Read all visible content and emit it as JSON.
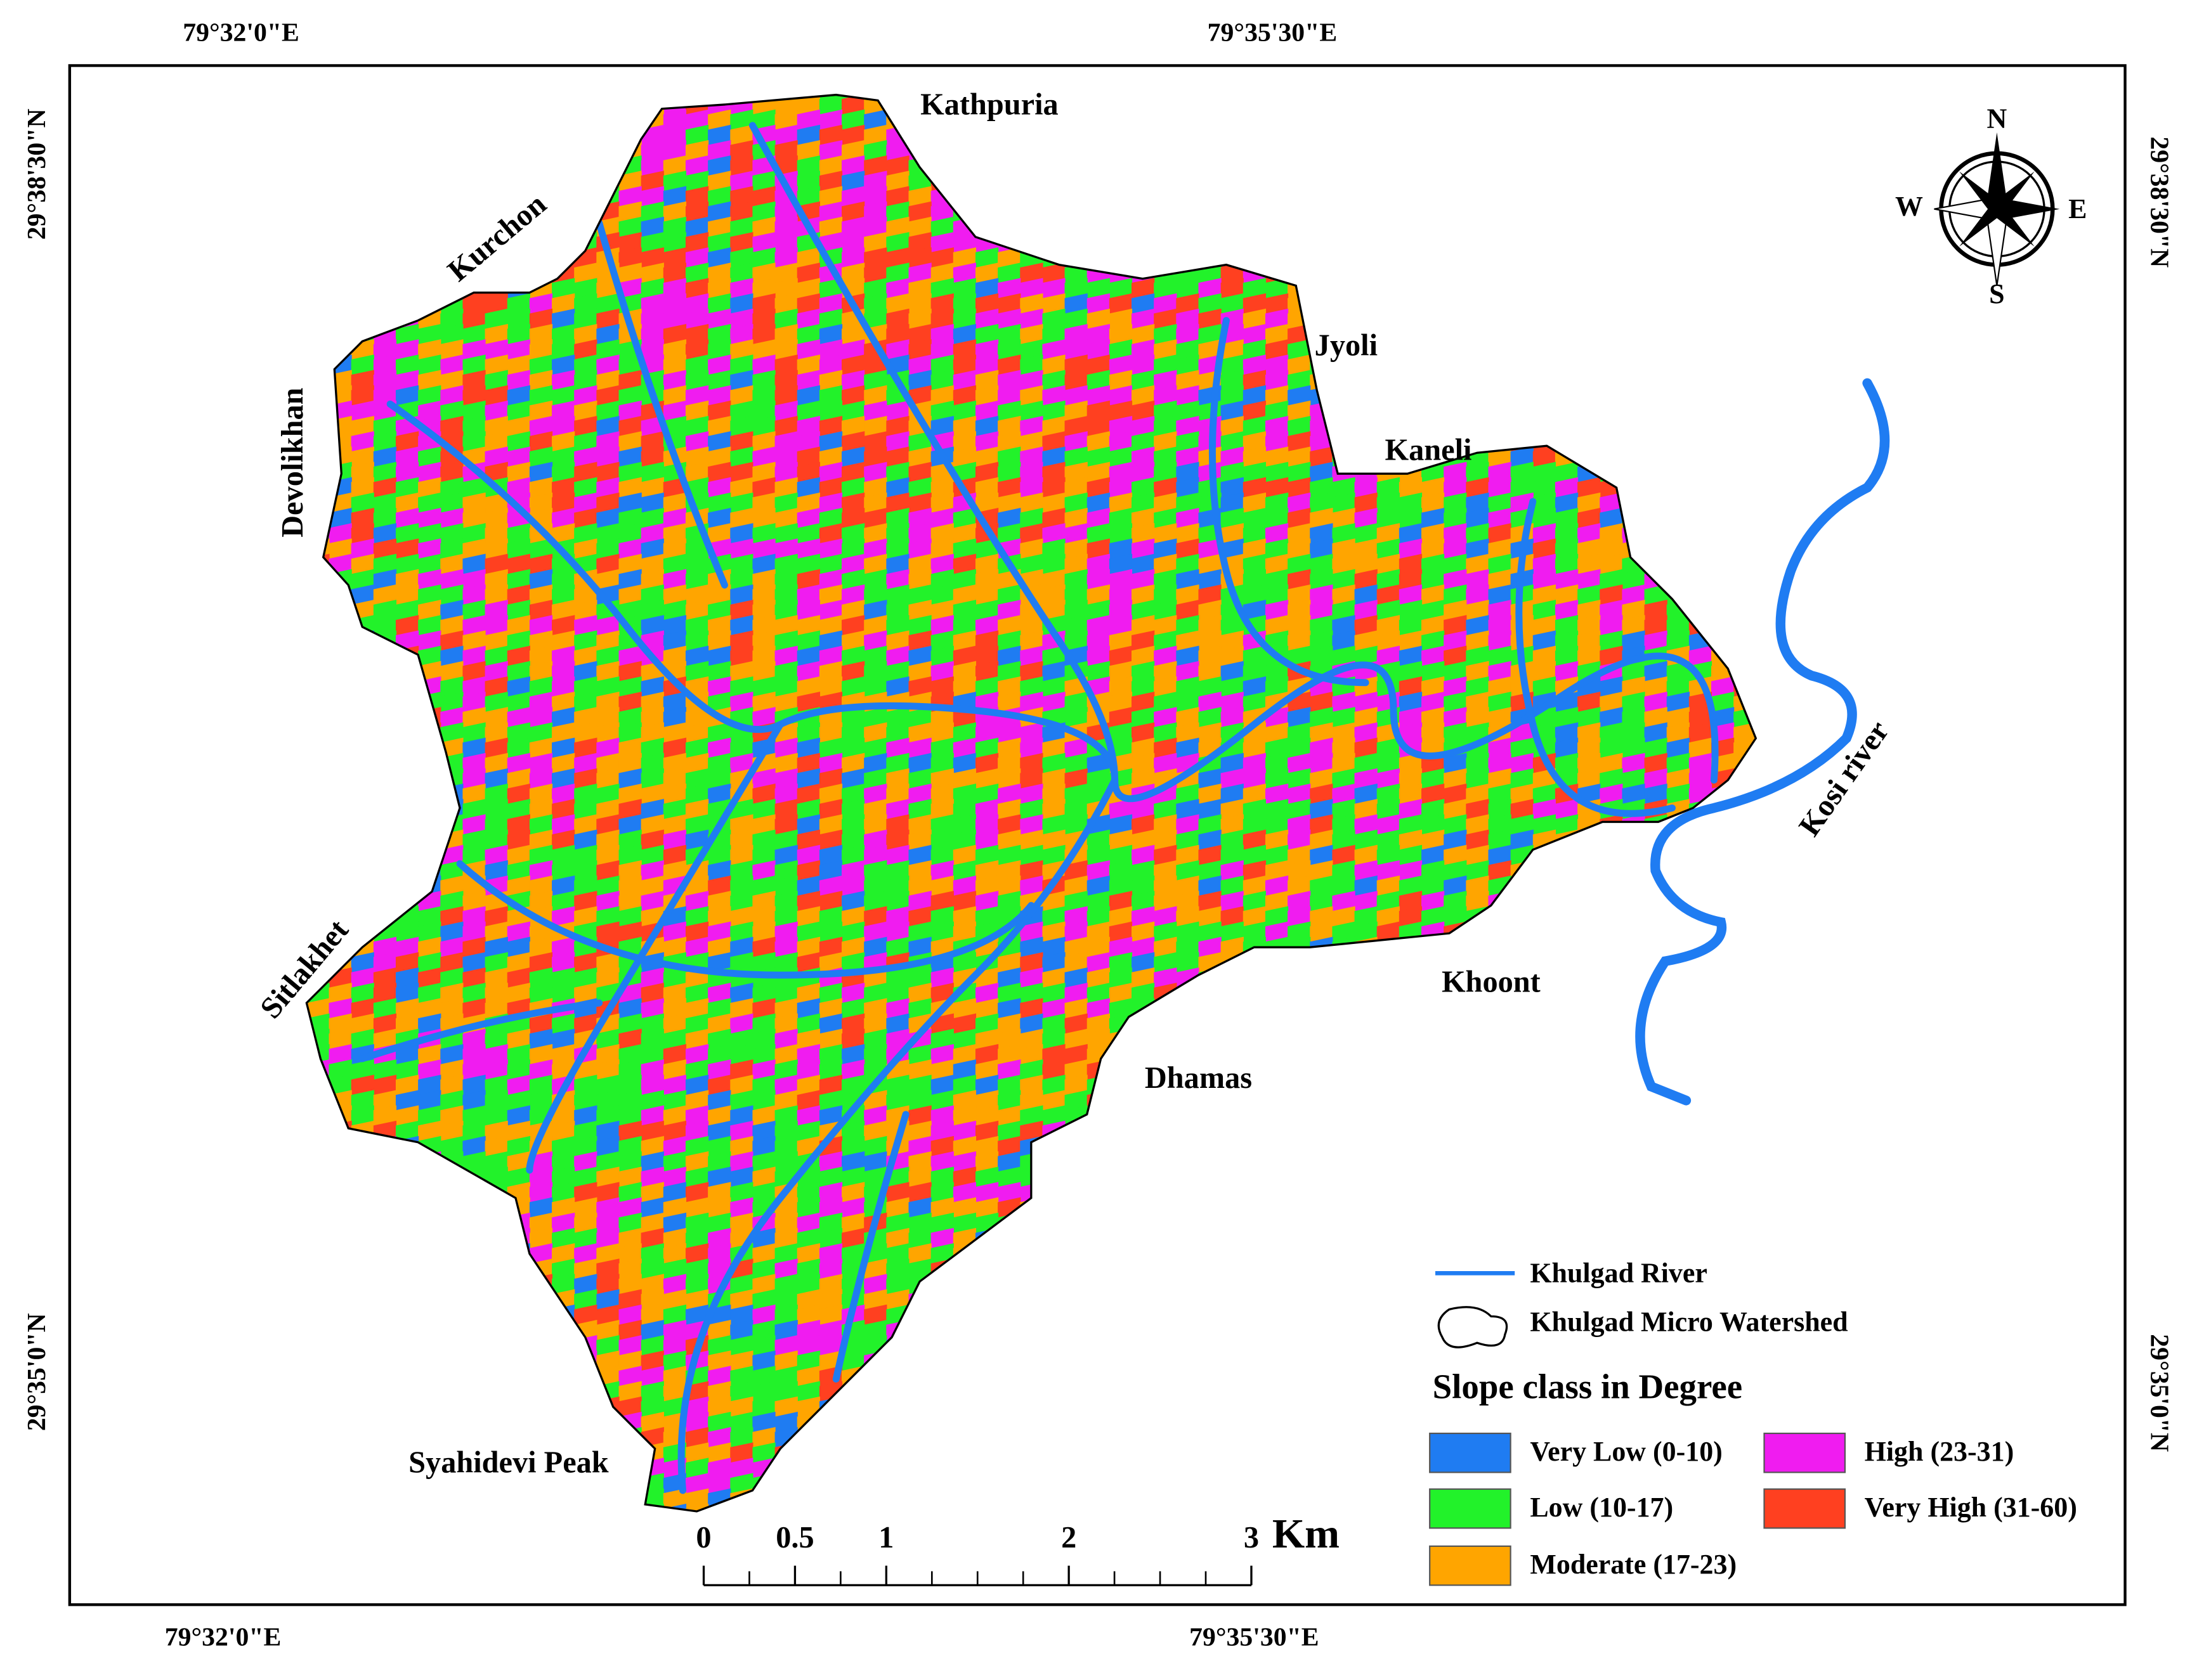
{
  "graticule": {
    "top": [
      "79°32'0\"E",
      "79°35'30\"E"
    ],
    "bottom": [
      "79°32'0\"E",
      "79°35'30\"E"
    ],
    "left": [
      "29°38'30\"N",
      "29°35'0\"N"
    ],
    "right": [
      "29°38'30\"N",
      "29°35'0\"N"
    ]
  },
  "places": [
    "Kathpuria",
    "Kurchon",
    "Devolikhan",
    "Jyoli",
    "Kaneli",
    "Kosi river",
    "Khoont",
    "Dhamas",
    "Sitlakhet",
    "Syahidevi Peak"
  ],
  "compass": {
    "n": "N",
    "e": "E",
    "s": "S",
    "w": "W"
  },
  "legend": {
    "river": "Khulgad River",
    "watershed": "Khulgad Micro Watershed",
    "title": "Slope class in Degree",
    "classes": [
      {
        "label": "Very Low (0-10)",
        "color": "#1f7cf2"
      },
      {
        "label": "Low (10-17)",
        "color": "#22f22a"
      },
      {
        "label": "Moderate (17-23)",
        "color": "#ffa500"
      },
      {
        "label": "High (23-31)",
        "color": "#f01cf0"
      },
      {
        "label": "Very High (31-60)",
        "color": "#ff4020"
      }
    ]
  },
  "scale_bar": {
    "ticks": [
      0,
      0.5,
      1,
      2,
      3
    ],
    "unit": "Km"
  }
}
